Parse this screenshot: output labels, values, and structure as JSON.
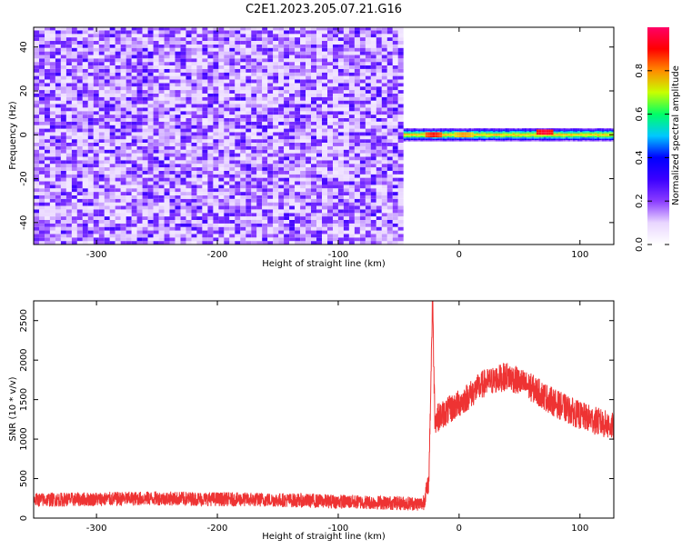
{
  "title": "C2E1.2023.205.07.21.G16",
  "chart_data": [
    {
      "type": "heatmap",
      "xlabel": "Height of straight line (km)",
      "ylabel": "Frequency (Hz)",
      "xlim": [
        -352,
        128
      ],
      "ylim": [
        -50,
        49
      ],
      "x_ticks": [
        -300,
        -200,
        -100,
        0,
        100
      ],
      "x_tick_labels": [
        "-300",
        "-200",
        "-100",
        "0",
        "100"
      ],
      "y_ticks": [
        -40,
        -20,
        0,
        20,
        40
      ],
      "y_tick_labels": [
        "-40",
        "-20",
        "0",
        "20",
        "40"
      ],
      "noise_region_x": [
        -352,
        -46
      ],
      "signal_region_x": [
        -46,
        128
      ],
      "signal_center_hz": 0,
      "signal_halfwidth_hz": 3,
      "hot_spots": [
        {
          "x": -22,
          "y": 0,
          "amplitude": 0.9
        },
        {
          "x": 3,
          "y": 0,
          "amplitude": 0.8
        },
        {
          "x": 70,
          "y": 1,
          "amplitude": 0.95
        }
      ],
      "colorbar": {
        "label": "Normalized spectral amplitude",
        "range": [
          0,
          1
        ],
        "ticks": [
          0.0,
          0.2,
          0.4,
          0.6,
          0.8
        ],
        "tick_labels": [
          "0.0",
          "0.2",
          "0.4",
          "0.6",
          "0.8"
        ],
        "colors": [
          "#ffffff",
          "#e9d6ff",
          "#8a3cff",
          "#3b00ff",
          "#0000ff",
          "#00c8ff",
          "#00ff66",
          "#c8ff00",
          "#ff8c00",
          "#ff0000",
          "#ff0066"
        ]
      }
    },
    {
      "type": "line",
      "xlabel": "Height of straight line (km)",
      "ylabel": "SNR (10 * v/v)",
      "xlim": [
        -352,
        128
      ],
      "ylim": [
        0,
        2750
      ],
      "x_ticks": [
        -300,
        -200,
        -100,
        0,
        100
      ],
      "x_tick_labels": [
        "-300",
        "-200",
        "-100",
        "0",
        "100"
      ],
      "y_ticks": [
        0,
        500,
        1000,
        1500,
        2000,
        2500
      ],
      "y_tick_labels": [
        "0",
        "500",
        "1000",
        "1500",
        "2000",
        "2500"
      ],
      "color": "#ee3333",
      "x": [
        -352,
        -300,
        -250,
        -200,
        -150,
        -100,
        -50,
        -30,
        -25,
        -22,
        -20,
        -10,
        0,
        20,
        40,
        60,
        80,
        100,
        128
      ],
      "y": [
        230,
        240,
        250,
        240,
        230,
        210,
        190,
        180,
        450,
        2750,
        1250,
        1350,
        1450,
        1700,
        1800,
        1650,
        1450,
        1300,
        1150
      ]
    }
  ]
}
